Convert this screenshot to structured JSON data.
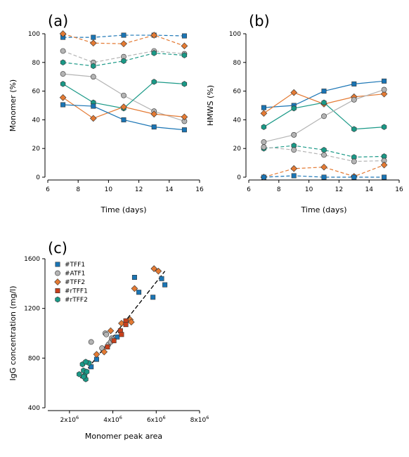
{
  "colors": {
    "blue": "#1a75b5",
    "orange": "#e47a33",
    "gray": "#b4b4b4",
    "teal": "#1a9987",
    "red": "#c8401c",
    "darkred": "#a02c10"
  },
  "chart_data": [
    {
      "panel_label": "(a)",
      "type": "line",
      "title": "",
      "xlabel": "Time (days)",
      "ylabel": "Monomer (%)",
      "xlim": [
        6,
        16
      ],
      "ylim": [
        0,
        100
      ],
      "xticks": [
        "6",
        "8",
        "10",
        "12",
        "14",
        "16"
      ],
      "yticks": [
        "0",
        "20",
        "40",
        "60",
        "80",
        "100"
      ],
      "grid": false,
      "series": [
        {
          "color": "blue",
          "marker": "square",
          "dashed": true,
          "x": [
            7,
            9,
            11,
            13,
            15
          ],
          "values": [
            97.5,
            97.5,
            99,
            99,
            98.5
          ]
        },
        {
          "color": "orange",
          "marker": "diamond",
          "dashed": true,
          "x": [
            7,
            9,
            11,
            13,
            15
          ],
          "values": [
            100,
            93.5,
            93,
            99,
            91.5
          ]
        },
        {
          "color": "gray",
          "marker": "circle",
          "dashed": true,
          "x": [
            7,
            9,
            11,
            13,
            15
          ],
          "values": [
            88,
            80,
            84,
            88,
            86
          ]
        },
        {
          "color": "teal",
          "marker": "hexagon",
          "dashed": true,
          "x": [
            7,
            9,
            11,
            13,
            15
          ],
          "values": [
            80,
            77.5,
            81,
            86.5,
            85
          ]
        },
        {
          "color": "gray",
          "marker": "circle",
          "dashed": false,
          "x": [
            7,
            9,
            11,
            13,
            15
          ],
          "values": [
            72,
            70,
            57,
            46,
            39
          ]
        },
        {
          "color": "teal",
          "marker": "hexagon",
          "dashed": false,
          "x": [
            7,
            9,
            11,
            13,
            15
          ],
          "values": [
            65,
            52,
            48,
            66.5,
            65
          ]
        },
        {
          "color": "orange",
          "marker": "diamond",
          "dashed": false,
          "x": [
            7,
            9,
            11,
            13,
            15
          ],
          "values": [
            55.5,
            41,
            49,
            44,
            42
          ]
        },
        {
          "color": "blue",
          "marker": "square",
          "dashed": false,
          "x": [
            7,
            9,
            11,
            13,
            15
          ],
          "values": [
            50.5,
            49.5,
            40,
            35,
            33
          ]
        }
      ]
    },
    {
      "panel_label": "(b)",
      "type": "line",
      "title": "",
      "xlabel": "Time (days)",
      "ylabel": "HMWS (%)",
      "xlim": [
        6,
        16
      ],
      "ylim": [
        0,
        100
      ],
      "xticks": [
        "6",
        "8",
        "10",
        "12",
        "14",
        "16"
      ],
      "yticks": [
        "0",
        "20",
        "40",
        "60",
        "80",
        "100"
      ],
      "grid": false,
      "series": [
        {
          "color": "blue",
          "marker": "square",
          "dashed": false,
          "x": [
            7,
            9,
            11,
            13,
            15
          ],
          "values": [
            48.5,
            50,
            60,
            65,
            67
          ]
        },
        {
          "color": "orange",
          "marker": "diamond",
          "dashed": false,
          "x": [
            7,
            9,
            11,
            13,
            15
          ],
          "values": [
            44.5,
            59,
            51,
            56,
            58
          ]
        },
        {
          "color": "teal",
          "marker": "hexagon",
          "dashed": false,
          "x": [
            7,
            9,
            11,
            13,
            15
          ],
          "values": [
            35,
            48,
            52,
            33.5,
            35
          ]
        },
        {
          "color": "gray",
          "marker": "circle",
          "dashed": false,
          "x": [
            7,
            9,
            11,
            13,
            15
          ],
          "values": [
            24.5,
            29.5,
            42.5,
            54,
            61
          ]
        },
        {
          "color": "teal",
          "marker": "hexagon",
          "dashed": true,
          "x": [
            7,
            9,
            11,
            13,
            15
          ],
          "values": [
            20,
            22,
            19,
            14,
            14.5
          ]
        },
        {
          "color": "gray",
          "marker": "circle",
          "dashed": true,
          "x": [
            7,
            9,
            11,
            13,
            15
          ],
          "values": [
            21,
            19,
            15.5,
            11,
            11.5
          ]
        },
        {
          "color": "orange",
          "marker": "diamond",
          "dashed": true,
          "x": [
            7,
            9,
            11,
            13,
            15
          ],
          "values": [
            0,
            6,
            7,
            0.5,
            8.5
          ]
        },
        {
          "color": "blue",
          "marker": "square",
          "dashed": true,
          "x": [
            7,
            9,
            11,
            13,
            15
          ],
          "values": [
            0,
            1,
            0,
            0,
            0
          ]
        }
      ]
    },
    {
      "panel_label": "(c)",
      "type": "scatter",
      "title": "",
      "xlabel": "Monomer peak area",
      "ylabel": "IgG concentration (mg/l)",
      "xlim": [
        1000000,
        8000000
      ],
      "ylim": [
        400,
        1600
      ],
      "xticks": [
        {
          "value": 2000000,
          "mantissa": "2x10",
          "exp": "6"
        },
        {
          "value": 4000000,
          "mantissa": "4x10",
          "exp": "6"
        },
        {
          "value": 6000000,
          "mantissa": "6x10",
          "exp": "6"
        },
        {
          "value": 8000000,
          "mantissa": "8x10",
          "exp": "6"
        }
      ],
      "yticks": [
        "400",
        "800",
        "1200",
        "1600"
      ],
      "grid": false,
      "legend_position": "top-left",
      "trendline": {
        "x": [
          2500000,
          6400000
        ],
        "y": [
          640,
          1500
        ],
        "dashed": true,
        "color": "#000000"
      },
      "series": [
        {
          "name": "#TFF1",
          "color": "blue",
          "marker": "square",
          "x": [
            3000000,
            3250000,
            4200000,
            5000000,
            5200000,
            5850000,
            6250000,
            6400000
          ],
          "y": [
            730,
            790,
            970,
            1450,
            1330,
            1290,
            1440,
            1390
          ]
        },
        {
          "name": "#ATF1",
          "color": "gray",
          "marker": "circle",
          "x": [
            3000000,
            3500000,
            3650000,
            3700000,
            3800000,
            3900000,
            3950000,
            4000000
          ],
          "y": [
            930,
            880,
            1000,
            990,
            910,
            930,
            960,
            950
          ]
        },
        {
          "name": "#TFF2",
          "color": "orange",
          "marker": "diamond",
          "x": [
            3250000,
            3600000,
            3900000,
            4400000,
            4800000,
            4850000,
            5000000,
            5900000,
            6100000
          ],
          "y": [
            830,
            850,
            1020,
            1080,
            1110,
            1090,
            1360,
            1520,
            1500
          ]
        },
        {
          "name": "#rTFF1",
          "color": "red",
          "marker": "square",
          "x": [
            3750000,
            4050000,
            4350000,
            4400000,
            4600000,
            4600000
          ],
          "y": [
            890,
            940,
            1020,
            990,
            1100,
            1070
          ]
        },
        {
          "name": "#rTFF2",
          "color": "teal",
          "marker": "hexagon",
          "x": [
            2450000,
            2600000,
            2650000,
            2700000,
            2750000,
            2800000,
            2900000,
            2650000,
            2750000
          ],
          "y": [
            670,
            750,
            700,
            660,
            630,
            690,
            760,
            650,
            770
          ]
        }
      ]
    }
  ]
}
